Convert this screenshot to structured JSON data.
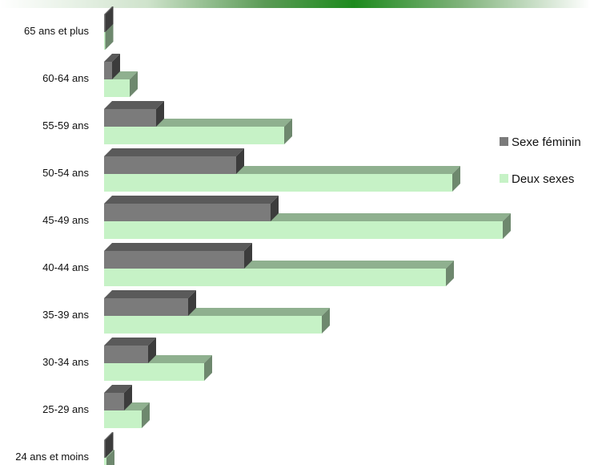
{
  "colors": {
    "female_front": "#7b7b7b",
    "female_top": "#5a5a5a",
    "female_side": "#3c3c3c",
    "both_front": "#c6f2c6",
    "both_top": "#8fb08f",
    "both_side": "#6e886e",
    "header_accent": "#1d8a1d"
  },
  "chart_data": {
    "type": "bar",
    "orientation": "horizontal",
    "style": "3d",
    "categories": [
      "65 ans et plus",
      "60-64 ans",
      "55-59 ans",
      "50-54 ans",
      "45-49 ans",
      "40-44 ans",
      "35-39 ans",
      "30-34 ans",
      "25-29 ans",
      "24 ans et moins"
    ],
    "series": [
      {
        "name": "Sexe féminin",
        "values": [
          1,
          10,
          65,
          165,
          208,
          175,
          105,
          55,
          25,
          1
        ]
      },
      {
        "name": "Deux sexes",
        "values": [
          1,
          32,
          225,
          435,
          498,
          427,
          272,
          125,
          47,
          3
        ]
      }
    ],
    "legend": [
      "Sexe féminin",
      "Deux sexes"
    ],
    "legend_position": "right",
    "xlim": [
      0,
      500
    ],
    "grid": false,
    "axis_labels_shown": false
  }
}
